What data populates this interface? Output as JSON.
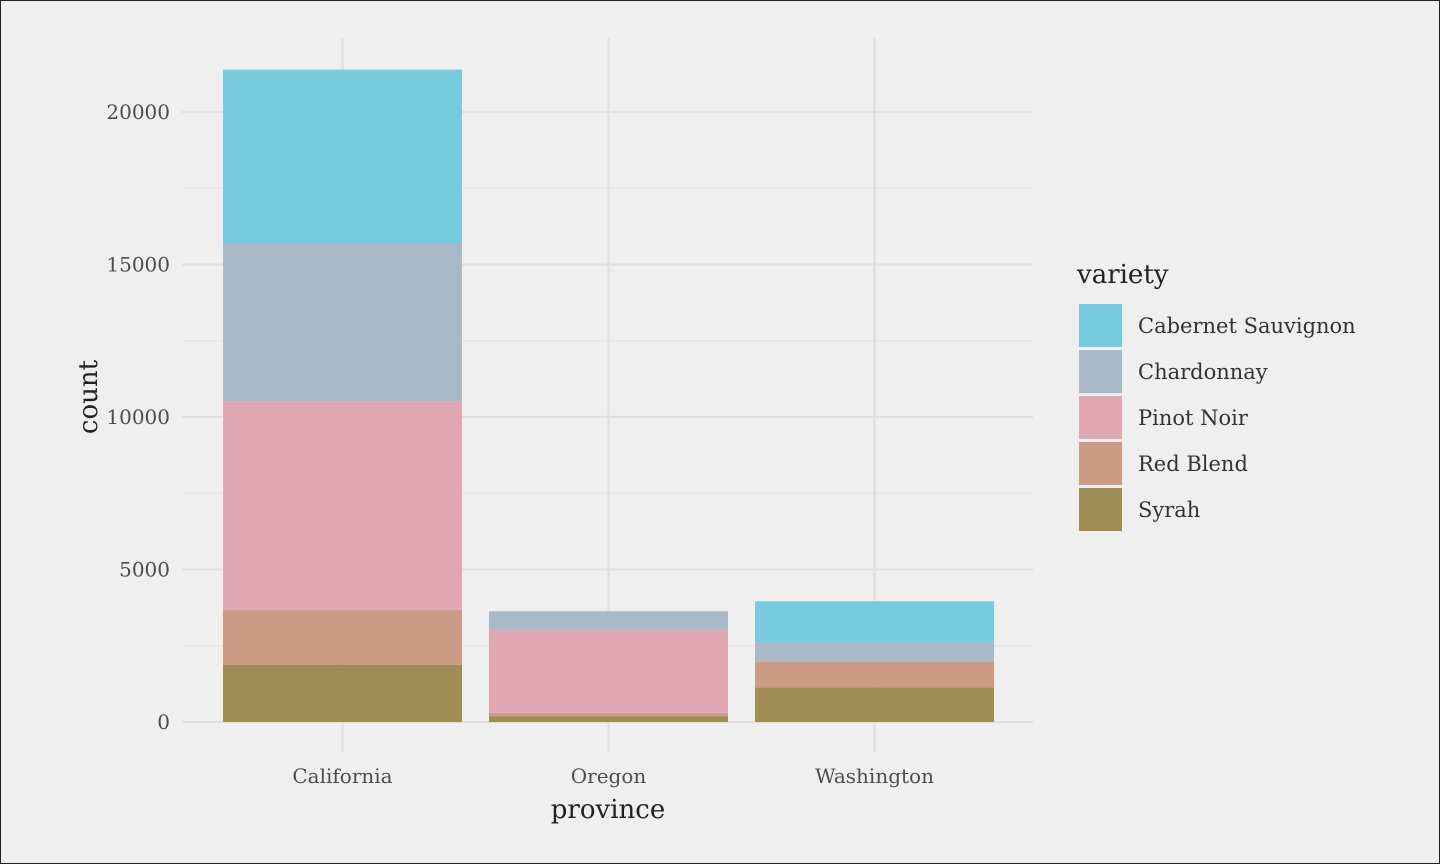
{
  "chart_data": {
    "type": "bar",
    "stacked": true,
    "xlabel": "province",
    "ylabel": "count",
    "categories": [
      "California",
      "Oregon",
      "Washington"
    ],
    "ylim": [
      0,
      22000
    ],
    "yticks": [
      0,
      5000,
      10000,
      15000,
      20000
    ],
    "grid": true,
    "legend_title": "variety",
    "legend_position": "right",
    "series": [
      {
        "name": "Syrah",
        "color": "#a08c55",
        "values": [
          1880,
          180,
          1140
        ]
      },
      {
        "name": "Red Blend",
        "color": "#cb9b86",
        "values": [
          1790,
          120,
          840
        ]
      },
      {
        "name": "Pinot Noir",
        "color": "#e0a8b4",
        "values": [
          6850,
          2720,
          0
        ]
      },
      {
        "name": "Chardonnay",
        "color": "#a9b9c7",
        "values": [
          5170,
          610,
          640
        ]
      },
      {
        "name": "Cabernet Sauvignon",
        "color": "#77cbdc",
        "values": [
          5700,
          0,
          1340
        ]
      }
    ],
    "legend_order": [
      "Cabernet Sauvignon",
      "Chardonnay",
      "Pinot Noir",
      "Red Blend",
      "Syrah"
    ]
  }
}
